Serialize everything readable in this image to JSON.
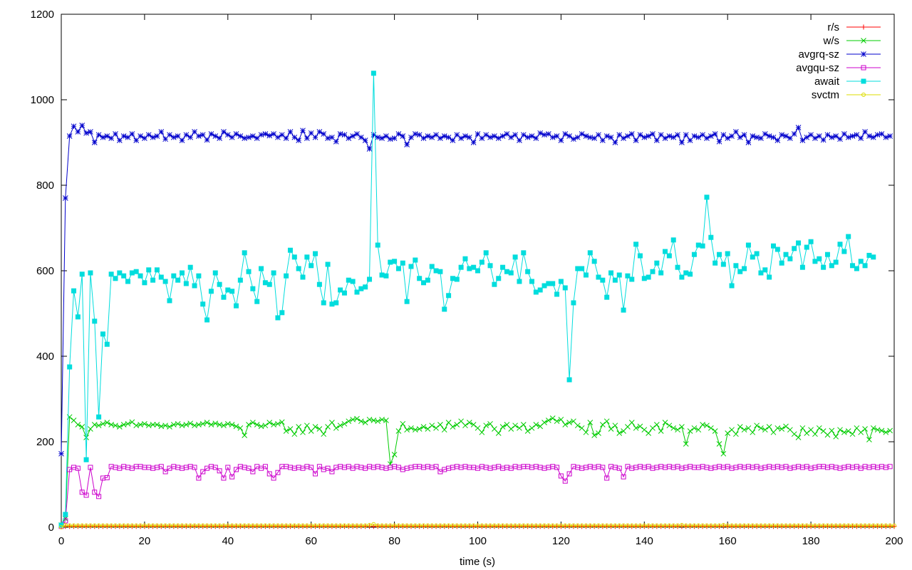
{
  "chart_data": {
    "type": "line",
    "title": "",
    "xlabel": "time (s)",
    "ylabel": "",
    "xlim": [
      0,
      200
    ],
    "ylim": [
      0,
      1200
    ],
    "xticks": [
      0,
      20,
      40,
      60,
      80,
      100,
      120,
      140,
      160,
      180,
      200
    ],
    "yticks": [
      0,
      200,
      400,
      600,
      800,
      1000,
      1200
    ],
    "grid": false,
    "legend_position": "top-right",
    "series": [
      {
        "name": "r/s",
        "color": "#ff0000",
        "marker": "plus",
        "x_start": 0,
        "x_step": 1,
        "values": [
          2,
          2,
          2,
          2,
          2,
          2,
          2,
          2,
          2,
          2,
          2,
          2,
          2,
          2,
          2,
          2,
          2,
          2,
          2,
          2,
          2,
          2,
          2,
          2,
          2,
          2,
          2,
          2,
          2,
          2,
          2,
          2,
          2,
          2,
          2,
          2,
          2,
          2,
          2,
          2,
          2,
          2,
          2,
          2,
          2,
          2,
          2,
          2,
          2,
          2,
          2,
          2,
          2,
          2,
          2,
          2,
          2,
          2,
          2,
          2,
          2,
          2,
          2,
          2,
          2,
          2,
          2,
          2,
          2,
          2,
          2,
          2,
          2,
          2,
          2,
          2,
          2,
          2,
          2,
          2,
          2,
          2,
          2,
          2,
          2,
          2,
          2,
          2,
          2,
          2,
          2,
          2,
          2,
          2,
          2,
          2,
          2,
          2,
          2,
          2,
          2,
          2,
          2,
          2,
          2,
          2,
          2,
          2,
          2,
          2,
          2,
          2,
          2,
          2,
          2,
          2,
          2,
          2,
          2,
          2,
          2,
          2,
          2,
          2,
          2,
          2,
          2,
          2,
          2,
          2,
          2,
          2,
          2,
          2,
          2,
          2,
          2,
          2,
          2,
          2,
          2,
          2,
          2,
          2,
          2,
          2,
          2,
          2,
          2,
          2,
          2,
          2,
          2,
          2,
          2,
          2,
          2,
          2,
          2,
          2,
          2,
          2,
          2,
          2,
          2,
          2,
          2,
          2,
          2,
          2,
          2,
          2,
          2,
          2,
          2,
          2,
          2,
          2,
          2,
          2,
          2,
          2,
          2,
          2,
          2,
          2,
          2,
          2,
          2,
          2,
          2,
          2,
          2,
          2,
          2,
          2,
          2,
          2,
          2,
          2,
          2
        ]
      },
      {
        "name": "w/s",
        "color": "#00cc00",
        "marker": "cross",
        "x_start": 0,
        "x_step": 1,
        "values": [
          5,
          20,
          258,
          250,
          240,
          235,
          210,
          230,
          240,
          238,
          242,
          245,
          240,
          238,
          235,
          240,
          242,
          246,
          238,
          240,
          242,
          238,
          240,
          240,
          236,
          238,
          235,
          240,
          242,
          238,
          240,
          243,
          238,
          240,
          242,
          245,
          240,
          243,
          240,
          238,
          242,
          240,
          236,
          232,
          215,
          240,
          245,
          240,
          236,
          238,
          245,
          240,
          242,
          246,
          225,
          230,
          218,
          235,
          222,
          238,
          225,
          235,
          230,
          218,
          235,
          245,
          232,
          238,
          242,
          248,
          252,
          254,
          248,
          245,
          252,
          250,
          248,
          252,
          250,
          148,
          170,
          225,
          242,
          228,
          232,
          228,
          230,
          235,
          230,
          238,
          232,
          240,
          228,
          245,
          235,
          240,
          248,
          238,
          245,
          240,
          232,
          222,
          238,
          242,
          230,
          220,
          235,
          240,
          230,
          238,
          232,
          240,
          225,
          232,
          240,
          236,
          245,
          250,
          255,
          248,
          252,
          240,
          245,
          248,
          238,
          232,
          222,
          245,
          215,
          220,
          240,
          248,
          230,
          238,
          220,
          225,
          235,
          245,
          232,
          236,
          228,
          220,
          232,
          240,
          225,
          245,
          238,
          232,
          228,
          235,
          195,
          225,
          232,
          228,
          240,
          238,
          232,
          225,
          195,
          172,
          220,
          228,
          218,
          235,
          228,
          232,
          222,
          238,
          232,
          228,
          235,
          222,
          232,
          230,
          236,
          228,
          218,
          210,
          232,
          220,
          228,
          218,
          232,
          225,
          216,
          226,
          212,
          228,
          222,
          225,
          218,
          232,
          222,
          230,
          205,
          232,
          228,
          226,
          222,
          226
        ]
      },
      {
        "name": "avgrq-sz",
        "color": "#0000cc",
        "marker": "star",
        "x_start": 0,
        "x_step": 1,
        "values": [
          172,
          770,
          915,
          938,
          925,
          940,
          922,
          925,
          900,
          918,
          912,
          915,
          910,
          920,
          905,
          915,
          912,
          920,
          905,
          915,
          910,
          918,
          912,
          915,
          925,
          908,
          918,
          912,
          915,
          905,
          918,
          912,
          925,
          915,
          918,
          906,
          920,
          915,
          910,
          925,
          918,
          912,
          920,
          915,
          910,
          912,
          915,
          910,
          918,
          920,
          916,
          920,
          912,
          918,
          910,
          925,
          912,
          905,
          928,
          910,
          922,
          912,
          925,
          920,
          910,
          912,
          902,
          920,
          918,
          910,
          915,
          920,
          912,
          905,
          885,
          918,
          912,
          910,
          915,
          908,
          910,
          920,
          915,
          895,
          912,
          920,
          918,
          910,
          915,
          912,
          918,
          910,
          915,
          912,
          905,
          918,
          910,
          915,
          912,
          900,
          920,
          910,
          918,
          912,
          915,
          910,
          915,
          920,
          912,
          918,
          905,
          918,
          912,
          915,
          910,
          922,
          918,
          920,
          912,
          915,
          905,
          920,
          915,
          908,
          912,
          920,
          915,
          912,
          910,
          918,
          905,
          915,
          912,
          900,
          918,
          910,
          915,
          920,
          905,
          918,
          912,
          915,
          920,
          905,
          918,
          910,
          915,
          912,
          918,
          900,
          918,
          905,
          915,
          912,
          918,
          910,
          915,
          920,
          902,
          918,
          910,
          915,
          925,
          912,
          918,
          900,
          915,
          912,
          910,
          920,
          915,
          912,
          905,
          918,
          915,
          910,
          920,
          935,
          905,
          912,
          918,
          910,
          915,
          906,
          918,
          912,
          915,
          908,
          920,
          912,
          915,
          918,
          910,
          925,
          915,
          912,
          918,
          920,
          912,
          915
        ]
      },
      {
        "name": "avgqu-sz",
        "color": "#cc00cc",
        "marker": "square",
        "x_start": 0,
        "x_step": 1,
        "values": [
          2,
          15,
          135,
          140,
          138,
          82,
          75,
          140,
          82,
          72,
          115,
          116,
          142,
          140,
          138,
          142,
          140,
          138,
          142,
          142,
          140,
          140,
          138,
          140,
          142,
          130,
          138,
          142,
          140,
          138,
          140,
          142,
          140,
          115,
          130,
          138,
          142,
          140,
          132,
          115,
          140,
          118,
          135,
          142,
          140,
          138,
          130,
          142,
          138,
          142,
          125,
          115,
          128,
          142,
          142,
          140,
          138,
          140,
          138,
          142,
          140,
          125,
          142,
          135,
          138,
          130,
          140,
          142,
          140,
          142,
          138,
          142,
          140,
          138,
          142,
          140,
          142,
          140,
          138,
          140,
          142,
          140,
          135,
          138,
          140,
          142,
          142,
          140,
          142,
          140,
          142,
          130,
          135,
          138,
          140,
          142,
          140,
          142,
          140,
          140,
          138,
          142,
          140,
          138,
          140,
          142,
          138,
          140,
          138,
          142,
          140,
          142,
          142,
          140,
          142,
          140,
          138,
          140,
          142,
          140,
          120,
          108,
          125,
          142,
          140,
          138,
          140,
          142,
          140,
          142,
          140,
          115,
          142,
          140,
          138,
          118,
          142,
          138,
          140,
          142,
          140,
          142,
          138,
          140,
          142,
          140,
          142,
          140,
          142,
          138,
          140,
          142,
          140,
          140,
          142,
          140,
          138,
          140,
          142,
          140,
          142,
          138,
          140,
          142,
          140,
          142,
          140,
          142,
          138,
          140,
          142,
          140,
          142,
          140,
          142,
          138,
          140,
          142,
          140,
          142,
          138,
          140,
          142,
          142,
          140,
          142,
          140,
          138,
          140,
          142,
          140,
          142,
          138,
          142,
          140,
          142,
          140,
          142,
          140,
          142
        ]
      },
      {
        "name": "await",
        "color": "#00dddd",
        "marker": "square-filled",
        "x_start": 0,
        "x_step": 1,
        "values": [
          5,
          30,
          375,
          553,
          492,
          592,
          158,
          595,
          482,
          258,
          452,
          428,
          592,
          582,
          595,
          588,
          575,
          595,
          598,
          588,
          572,
          602,
          578,
          602,
          585,
          575,
          530,
          588,
          578,
          595,
          570,
          608,
          565,
          588,
          522,
          485,
          552,
          595,
          568,
          538,
          555,
          552,
          518,
          578,
          642,
          598,
          558,
          528,
          605,
          572,
          568,
          595,
          490,
          502,
          588,
          648,
          632,
          605,
          585,
          632,
          612,
          640,
          568,
          525,
          615,
          522,
          525,
          555,
          548,
          578,
          575,
          550,
          558,
          562,
          580,
          1062,
          660,
          590,
          588,
          620,
          622,
          605,
          618,
          528,
          610,
          625,
          582,
          572,
          578,
          610,
          600,
          598,
          510,
          542,
          582,
          580,
          608,
          628,
          605,
          608,
          600,
          620,
          642,
          612,
          568,
          582,
          608,
          598,
          595,
          632,
          575,
          642,
          598,
          575,
          550,
          555,
          565,
          570,
          570,
          545,
          575,
          560,
          345,
          525,
          605,
          605,
          590,
          642,
          622,
          585,
          578,
          538,
          595,
          578,
          590,
          508,
          588,
          580,
          662,
          635,
          582,
          585,
          598,
          618,
          595,
          645,
          635,
          672,
          608,
          585,
          595,
          592,
          638,
          660,
          658,
          772,
          678,
          618,
          638,
          615,
          640,
          565,
          612,
          598,
          605,
          660,
          632,
          640,
          595,
          602,
          585,
          658,
          650,
          618,
          638,
          628,
          652,
          665,
          608,
          655,
          668,
          622,
          628,
          608,
          638,
          612,
          620,
          662,
          645,
          680,
          612,
          605,
          622,
          612,
          636,
          632
        ]
      },
      {
        "name": "svctm",
        "color": "#dddd00",
        "marker": "circle",
        "x_start": 0,
        "x_step": 1,
        "values": [
          0,
          5,
          4,
          4,
          4,
          4,
          4,
          4,
          4,
          4,
          4,
          4,
          4,
          4,
          4,
          4,
          4,
          4,
          4,
          4,
          4,
          4,
          4,
          4,
          4,
          4,
          4,
          4,
          4,
          4,
          4,
          4,
          4,
          4,
          4,
          4,
          4,
          4,
          4,
          4,
          4,
          4,
          4,
          4,
          4,
          4,
          4,
          4,
          4,
          4,
          4,
          4,
          4,
          4,
          4,
          4,
          4,
          4,
          4,
          4,
          4,
          4,
          4,
          4,
          4,
          4,
          4,
          4,
          4,
          4,
          4,
          4,
          4,
          4,
          5,
          7,
          4,
          4,
          4,
          4,
          4,
          4,
          4,
          4,
          4,
          4,
          4,
          4,
          4,
          4,
          4,
          4,
          4,
          4,
          4,
          4,
          4,
          4,
          4,
          4,
          4,
          4,
          4,
          4,
          4,
          4,
          4,
          4,
          4,
          4,
          4,
          4,
          4,
          4,
          4,
          4,
          4,
          4,
          4,
          4,
          4,
          4,
          4,
          4,
          4,
          4,
          4,
          4,
          4,
          4,
          4,
          4,
          4,
          4,
          4,
          4,
          4,
          4,
          4,
          4,
          4,
          4,
          4,
          4,
          4,
          4,
          4,
          4,
          4,
          5,
          4,
          4,
          4,
          4,
          4,
          4,
          4,
          4,
          4,
          5,
          4,
          4,
          4,
          4,
          4,
          4,
          4,
          4,
          4,
          4,
          4,
          4,
          4,
          4,
          4,
          4,
          4,
          4,
          4,
          4,
          4,
          4,
          4,
          4,
          4,
          4,
          4,
          4,
          4,
          4,
          4,
          4,
          4,
          4,
          4,
          4,
          4,
          4,
          4,
          4,
          4
        ]
      }
    ]
  }
}
